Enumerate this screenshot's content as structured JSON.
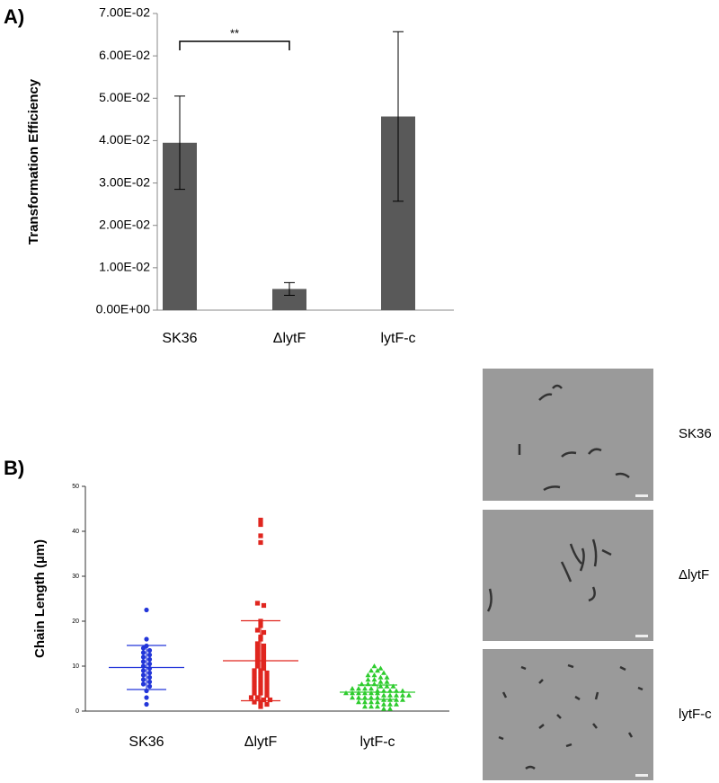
{
  "chart_data": [
    {
      "type": "bar",
      "panel_label": "A)",
      "ylabel": "Transformation Efficiency",
      "categories": [
        "SK36",
        "ΔlytF",
        "lytF-c"
      ],
      "values": [
        0.0395,
        0.005,
        0.0457
      ],
      "errors": [
        0.011,
        0.0015,
        0.02
      ],
      "color": "#595959",
      "annotation": "**",
      "ylim": [
        0,
        0.07
      ],
      "yticks": [
        {
          "value": 0,
          "label": "0.00E+00"
        },
        {
          "value": 0.01,
          "label": "1.00E-02"
        },
        {
          "value": 0.02,
          "label": "2.00E-02"
        },
        {
          "value": 0.03,
          "label": "3.00E-02"
        },
        {
          "value": 0.04,
          "label": "4.00E-02"
        },
        {
          "value": 0.05,
          "label": "5.00E-02"
        },
        {
          "value": 0.06,
          "label": "6.00E-02"
        },
        {
          "value": 0.07,
          "label": "7.00E-02"
        }
      ]
    },
    {
      "type": "dot",
      "panel_label": "B)",
      "ylabel": "Chain Length (µm)",
      "categories": [
        "SK36",
        "ΔlytF",
        "lytF-c"
      ],
      "ylim": [
        0,
        50
      ],
      "yticks": [
        0,
        10,
        20,
        30,
        40,
        50
      ],
      "groups": [
        {
          "color": "#2336d9",
          "marker": "circle",
          "mean": 9.7,
          "sd": 4.9,
          "values": [
            22.5,
            16,
            14.5,
            14,
            13.5,
            13,
            12.5,
            12,
            11.5,
            11,
            10.5,
            10,
            9.5,
            9,
            8.5,
            8,
            7.5,
            7,
            6.5,
            6,
            5.5,
            4.5,
            3,
            1.5
          ]
        },
        {
          "color": "#e0261f",
          "marker": "square",
          "mean": 11.2,
          "sd": 8.9,
          "values": [
            42.5,
            41.5,
            39,
            37.5,
            24,
            23.5,
            20,
            19,
            18,
            17.5,
            16.5,
            16,
            15,
            14.5,
            14,
            13.5,
            13,
            12.5,
            12,
            11.5,
            11,
            10.5,
            10,
            9.5,
            9,
            9,
            8.5,
            8,
            8,
            7.5,
            7,
            7,
            6.5,
            6,
            6,
            5.5,
            5,
            5,
            4.5,
            4,
            4,
            3.5,
            3,
            3,
            2.5,
            2.5,
            2,
            2,
            1.5,
            1
          ]
        },
        {
          "color": "#2ecc2e",
          "marker": "triangle",
          "mean": 4.2,
          "sd": 1.6,
          "values": [
            10,
            9.5,
            9,
            9,
            8.5,
            8,
            8,
            7.5,
            7.5,
            7,
            7,
            6.5,
            6.5,
            6,
            6,
            6,
            5.5,
            5.5,
            5.5,
            5,
            5,
            5,
            5,
            4.5,
            4.5,
            4.5,
            4.5,
            4.5,
            4,
            4,
            4,
            4,
            4,
            4,
            3.5,
            3.5,
            3.5,
            3.5,
            3.5,
            3,
            3,
            3,
            3,
            3,
            2.5,
            2.5,
            2.5,
            2.5,
            2,
            2,
            2,
            2,
            1.5,
            1.5,
            1.5,
            1,
            1,
            1,
            0.5,
            0.5
          ]
        }
      ]
    }
  ],
  "micrographs": [
    {
      "label": "SK36"
    },
    {
      "label": "ΔlytF"
    },
    {
      "label": "lytF-c"
    }
  ]
}
